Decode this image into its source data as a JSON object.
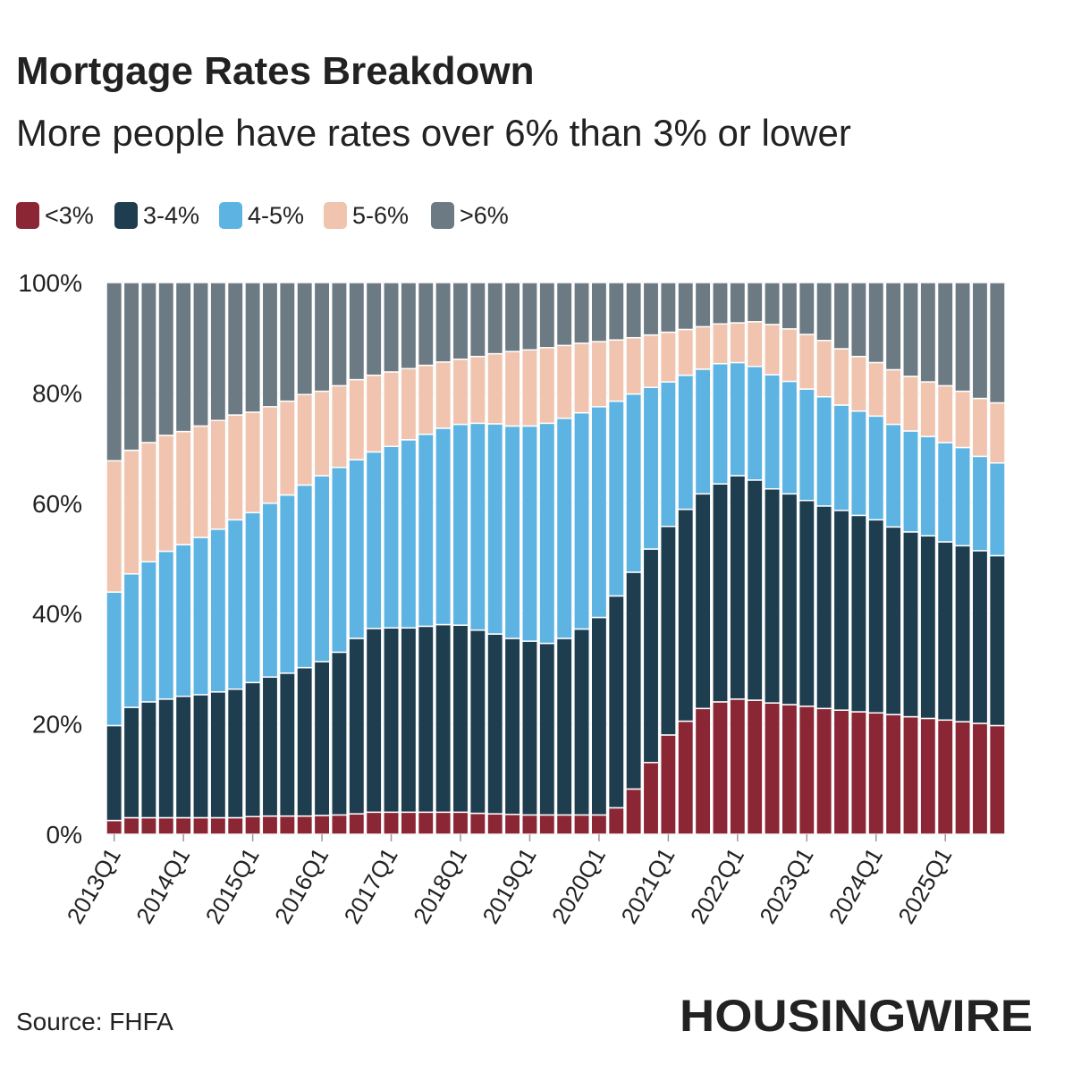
{
  "chart_data": {
    "type": "stacked_bar",
    "title": "Mortgage Rates Breakdown",
    "subtitle": "More people have rates over 6% than 3% or lower",
    "source": "Source: FHFA",
    "logo": "HOUSINGWIRE",
    "categories": [
      "2013Q1",
      null,
      null,
      null,
      "2014Q1",
      null,
      null,
      null,
      "2015Q1",
      null,
      null,
      null,
      "2016Q1",
      null,
      null,
      null,
      "2017Q1",
      null,
      null,
      null,
      "2018Q1",
      null,
      null,
      null,
      "2019Q1",
      null,
      null,
      null,
      "2020Q1",
      null,
      null,
      null,
      "2021Q1",
      null,
      null,
      null,
      "2022Q1",
      null,
      null,
      null,
      "2023Q1",
      null,
      null,
      null,
      "2024Q1",
      null,
      null,
      null,
      "2025Q1",
      null,
      null,
      null
    ],
    "ylim": [
      0,
      100
    ],
    "yticks": [
      {
        "value": 0,
        "label": "0%"
      },
      {
        "value": 20,
        "label": "20%"
      },
      {
        "value": 40,
        "label": "40%"
      },
      {
        "value": 60,
        "label": "60%"
      },
      {
        "value": 80,
        "label": "80%"
      },
      {
        "value": 100,
        "label": "100%"
      }
    ],
    "grid": true,
    "series": [
      {
        "name": "<3%",
        "color": "#8b2635",
        "values": [
          2.5,
          3,
          3,
          3,
          3,
          3,
          3,
          3,
          3.2,
          3.3,
          3.3,
          3.3,
          3.4,
          3.5,
          3.7,
          4,
          4,
          4,
          4,
          4,
          4,
          3.8,
          3.7,
          3.6,
          3.5,
          3.5,
          3.5,
          3.5,
          3.5,
          4.8,
          8.2,
          13,
          18,
          20.5,
          22.8,
          24,
          24.5,
          24.3,
          23.8,
          23.5,
          23.2,
          22.8,
          22.5,
          22.2,
          22,
          21.7,
          21.3,
          21,
          20.7,
          20.4,
          20.1,
          19.7
        ]
      },
      {
        "name": "3-4%",
        "color": "#1e3d4f",
        "values": [
          17.2,
          20,
          21,
          21.5,
          22,
          22.3,
          22.8,
          23.3,
          24.3,
          25.2,
          25.9,
          26.9,
          27.9,
          29.5,
          31.8,
          33.3,
          33.4,
          33.4,
          33.7,
          34,
          33.9,
          33.2,
          32.6,
          31.9,
          31.5,
          31.1,
          32,
          33.7,
          35.8,
          38.4,
          39.3,
          38.7,
          37.8,
          38.4,
          38.9,
          39.5,
          40.5,
          39.9,
          38.8,
          38.2,
          37.3,
          36.7,
          36.2,
          35.6,
          35,
          34,
          33.5,
          33.1,
          32.3,
          31.9,
          31.3,
          30.8
        ]
      },
      {
        "name": "4-5%",
        "color": "#5db4e3",
        "values": [
          24.2,
          24.2,
          25.4,
          26.8,
          27.5,
          28.5,
          29.5,
          30.7,
          30.8,
          31.5,
          32.3,
          33.1,
          33.7,
          33.5,
          32.4,
          32,
          32.9,
          34.1,
          34.8,
          35.6,
          36.4,
          37.5,
          38.1,
          38.5,
          39,
          39.9,
          39.9,
          39.2,
          38.2,
          35.3,
          32.3,
          29.3,
          26.2,
          24.3,
          22.6,
          21.8,
          20.5,
          20.6,
          20.7,
          20.4,
          20.2,
          19.8,
          19.1,
          18.9,
          18.8,
          18.6,
          18.3,
          18,
          18,
          17.8,
          17.1,
          16.8
        ]
      },
      {
        "name": "5-6%",
        "color": "#f0c4ae",
        "values": [
          23.8,
          22.4,
          21.6,
          21,
          20.5,
          20.2,
          19.7,
          19,
          18.2,
          17.5,
          17,
          16.4,
          15.3,
          14.8,
          14.5,
          13.9,
          13.5,
          12.9,
          12.5,
          12,
          11.8,
          12.1,
          12.7,
          13.5,
          13.8,
          13.7,
          13.2,
          12.6,
          11.8,
          11.1,
          10.2,
          9.5,
          9,
          8.3,
          7.7,
          7.2,
          7.2,
          8.1,
          9.1,
          9.5,
          9.9,
          10.2,
          10.2,
          9.9,
          9.7,
          9.9,
          9.9,
          9.9,
          10.3,
          10.2,
          10.5,
          10.9
        ]
      },
      {
        "name": ">6%",
        "color": "#6b7a83",
        "values": [
          32.3,
          30.4,
          29,
          27.7,
          27,
          26,
          25,
          24,
          23.5,
          22.5,
          21.5,
          20.3,
          19.7,
          18.7,
          17.6,
          16.8,
          16.2,
          15.6,
          15,
          14.4,
          13.9,
          13.4,
          12.9,
          12.5,
          12.2,
          11.8,
          11.4,
          11,
          10.7,
          10.4,
          10,
          9.5,
          9,
          8.5,
          8,
          7.5,
          7.3,
          7.1,
          7.6,
          8.4,
          9.4,
          10.5,
          12,
          13.4,
          14.5,
          15.8,
          17,
          18,
          18.7,
          19.7,
          21,
          21.8
        ]
      }
    ]
  }
}
